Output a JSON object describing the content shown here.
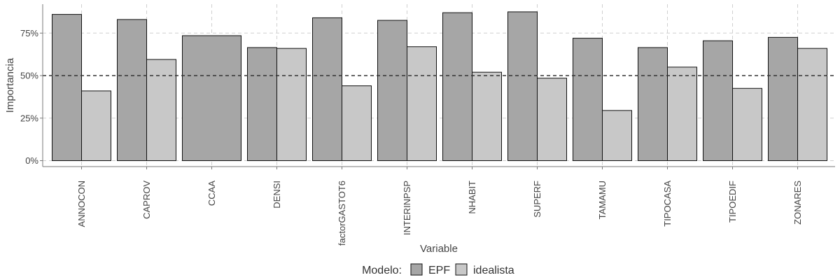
{
  "chart_data": {
    "type": "bar",
    "xlabel": "Variable",
    "ylabel": "Importancia",
    "ylim": [
      -3.5,
      92
    ],
    "yticks": [
      0,
      25,
      50,
      75
    ],
    "ytick_labels": [
      "0%",
      "25%",
      "50%",
      "75%"
    ],
    "reference_line": 50,
    "grid": true,
    "legend_position": "bottom",
    "legend_title": "Modelo:",
    "categories": [
      "ANNOCON",
      "CAPROV",
      "CCAA",
      "DENSI",
      "factorGASTOT6",
      "INTERINPSP",
      "NHABIT",
      "SUPERF",
      "TAMAMU",
      "TIPOCASA",
      "TIPOEDIF",
      "ZONARES"
    ],
    "series": [
      {
        "name": "EPF",
        "color": "#a6a6a6",
        "values": [
          86,
          83,
          73.5,
          66.5,
          84,
          82.5,
          87,
          87.5,
          72,
          66.5,
          70.5,
          72.5
        ]
      },
      {
        "name": "idealista",
        "color": "#c8c8c8",
        "values": [
          41,
          59.5,
          null,
          66,
          44,
          67,
          52,
          48.5,
          29.5,
          55,
          42.5,
          66
        ]
      }
    ]
  }
}
